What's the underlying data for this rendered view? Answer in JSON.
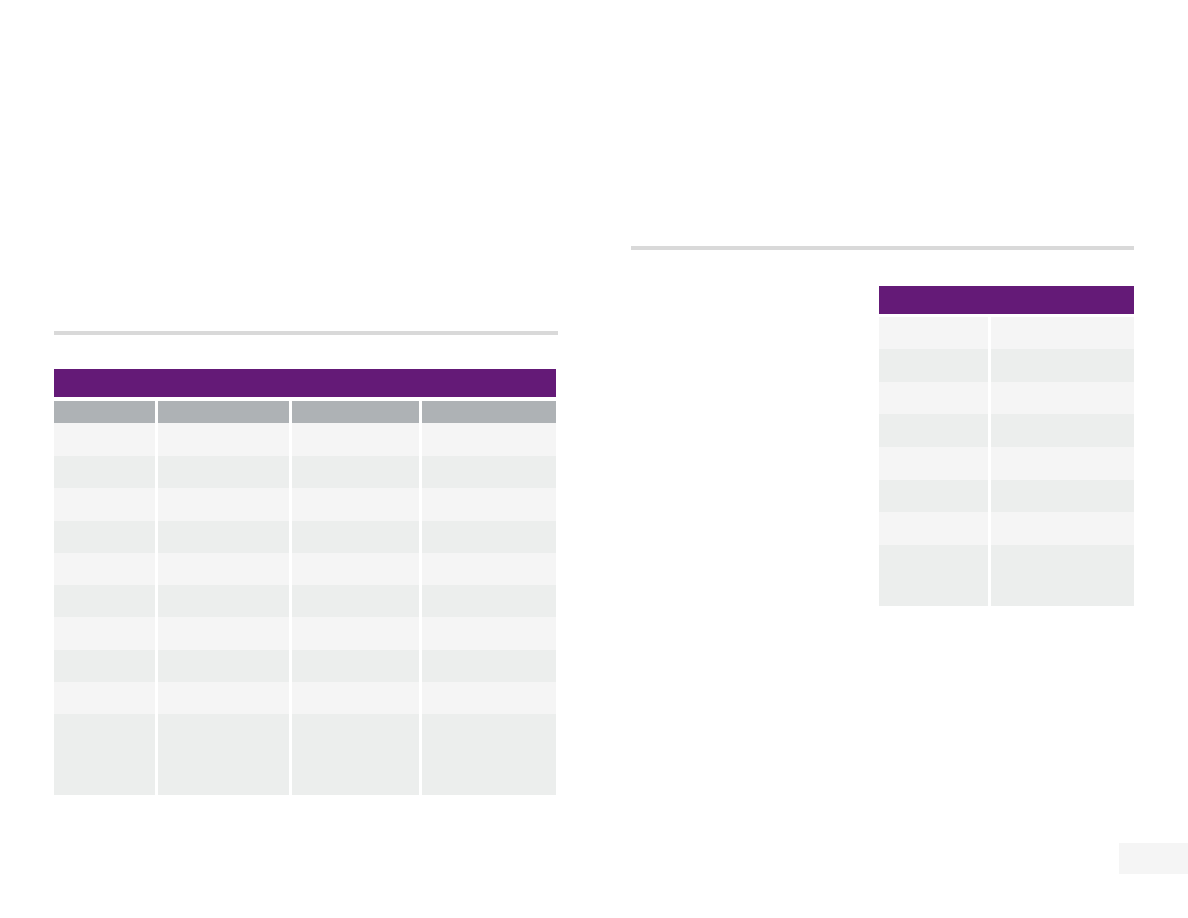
{
  "colors": {
    "title_bar": "#641a77",
    "header_row": "#aeb2b5",
    "row_light": "#f5f5f5",
    "row_dark": "#eceeed",
    "divider": "#d9d9d9"
  },
  "left_table": {
    "title": "",
    "headers": [
      "",
      "",
      "",
      ""
    ],
    "rows": [
      [
        "",
        "",
        "",
        ""
      ],
      [
        "",
        "",
        "",
        ""
      ],
      [
        "",
        "",
        "",
        ""
      ],
      [
        "",
        "",
        "",
        ""
      ],
      [
        "",
        "",
        "",
        ""
      ],
      [
        "",
        "",
        "",
        ""
      ],
      [
        "",
        "",
        "",
        ""
      ],
      [
        "",
        "",
        "",
        ""
      ],
      [
        "",
        "",
        "",
        ""
      ],
      [
        "",
        "",
        "",
        ""
      ]
    ]
  },
  "right_table": {
    "title": "",
    "rows": [
      [
        "",
        ""
      ],
      [
        "",
        ""
      ],
      [
        "",
        ""
      ],
      [
        "",
        ""
      ],
      [
        "",
        ""
      ],
      [
        "",
        ""
      ],
      [
        "",
        ""
      ],
      [
        "",
        ""
      ]
    ]
  },
  "page_number": ""
}
